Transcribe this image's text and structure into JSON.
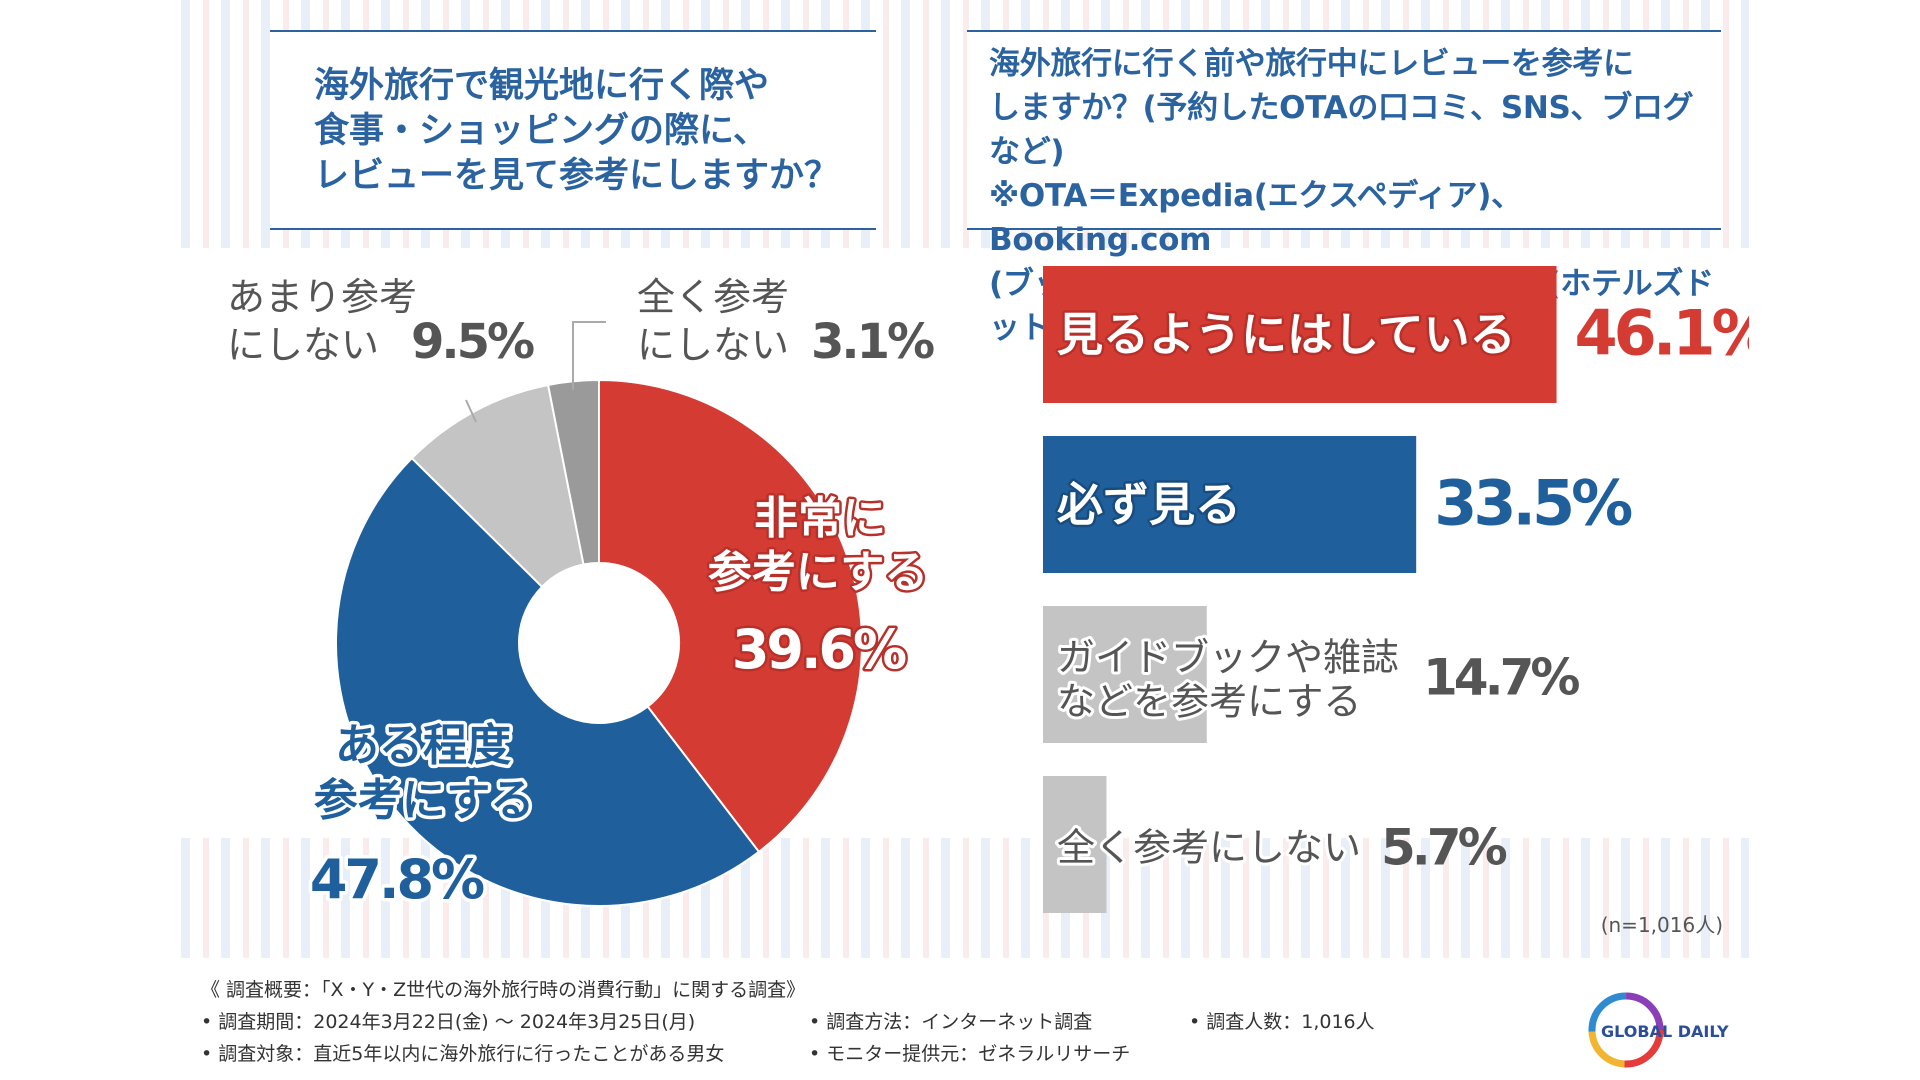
{
  "left_question": "海外旅行で観光地に行く際や\n食事・ショッピングの際に、\nレビューを見て参考にしますか？",
  "right_question": "海外旅行に行く前や旅行中にレビューを参考に\nしますか？(予約したOTAの口コミ、SNS、ブログなど)\n※OTA＝Expedia(エクスペディア)、Booking.com\n(ブッキングドットコム)、Hotels.com(ホテルズドットコム)",
  "sample_note": "(n=1,016人)",
  "survey": {
    "title": "《 調査概要：「X・Y・Z世代の海外旅行時の消費行動」に関する調査》",
    "period": "• 調査期間：2024年3月22日(金) 〜 2024年3月25日(月)",
    "method": "• 調査方法：インターネット調査",
    "count": "• 調査人数：1,016人",
    "target": "• 調査対象：直近5年以内に海外旅行に行ったことがある男女",
    "provider": "• モニター提供元：ゼネラルリサーチ"
  },
  "logo_text": "GLOBAL DAILY",
  "colors": {
    "red": "#d43b33",
    "blue": "#1f5f9c",
    "gray": "#c4c4c4",
    "dark_gray": "#9a9a9a",
    "title_blue": "#2a63a0",
    "text_gray": "#555555"
  },
  "chart_data": [
    {
      "type": "pie",
      "donut": true,
      "slices": [
        {
          "label": [
            "非常に",
            "参考にする"
          ],
          "value": 39.6,
          "color": "#d43b33"
        },
        {
          "label": [
            "ある程度",
            "参考にする"
          ],
          "value": 47.8,
          "color": "#1f5f9c"
        },
        {
          "label": [
            "あまり参考",
            "にしない"
          ],
          "value": 9.5,
          "color": "#c4c4c4"
        },
        {
          "label": [
            "全く参考",
            "にしない"
          ],
          "value": 3.1,
          "color": "#9a9a9a"
        }
      ],
      "unit": "%"
    },
    {
      "type": "bar",
      "orientation": "horizontal",
      "categories": [
        [
          "見るようにはしている"
        ],
        [
          "必ず見る"
        ],
        [
          "ガイドブックや雑誌",
          "などを参考にする"
        ],
        [
          "全く参考にしない"
        ]
      ],
      "values": [
        46.1,
        33.5,
        14.7,
        5.7
      ],
      "colors": [
        "#d43b33",
        "#1f5f9c",
        "#c4c4c4",
        "#c4c4c4"
      ],
      "unit": "%"
    }
  ]
}
